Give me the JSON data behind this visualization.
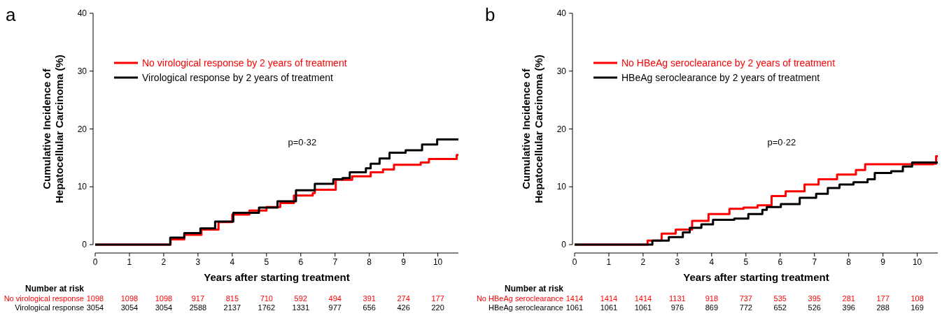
{
  "chart_data": [
    {
      "type": "step",
      "title": "a",
      "xlabel": "Years after starting treatment",
      "ylabel": "Cumulative Incidence of\nHepatocellular Carcinoma (%)",
      "xlim": [
        0,
        10.6
      ],
      "ylim": [
        0,
        40
      ],
      "xticks": [
        0,
        1,
        2,
        3,
        4,
        5,
        6,
        7,
        8,
        9,
        10
      ],
      "yticks": [
        0,
        10,
        20,
        30,
        40
      ],
      "legend": "top left",
      "grid": false,
      "series": [
        {
          "name": "No virological response by 2 years of treatment",
          "color": "#ff0000",
          "x": [
            0,
            2.0,
            2.2,
            2.6,
            3.1,
            3.6,
            4.0,
            4.5,
            5.0,
            5.4,
            5.8,
            6.35,
            6.41,
            7.02,
            7.5,
            8.04,
            8.4,
            8.72,
            9.5,
            9.74,
            10.39,
            10.55,
            10.6
          ],
          "values": [
            0,
            0,
            0.9,
            1.7,
            2.6,
            3.9,
            5.2,
            5.9,
            6.5,
            7.2,
            8.5,
            8.9,
            9.5,
            11.2,
            11.8,
            12.5,
            13.0,
            13.8,
            14.2,
            14.8,
            14.8,
            15.5,
            15.5
          ]
        },
        {
          "name": "Virological response by 2 years of treatment",
          "color": "#000000",
          "x": [
            0,
            1.92,
            2.19,
            2.6,
            3.07,
            3.5,
            4.03,
            4.78,
            5.32,
            5.86,
            6.41,
            6.95,
            7.22,
            7.43,
            7.9,
            8.04,
            8.3,
            8.59,
            9.06,
            9.54,
            9.98,
            10.6
          ],
          "values": [
            0,
            0,
            1.2,
            2.0,
            2.8,
            4.0,
            5.5,
            6.4,
            7.5,
            9.4,
            10.5,
            11.3,
            11.5,
            12.5,
            13.2,
            14.0,
            14.9,
            15.9,
            16.3,
            17.3,
            18.2,
            18.2
          ]
        }
      ],
      "annotations": [
        "p=0·32",
        "Number at risk",
        "No virological response",
        "1098",
        "1098",
        "1098",
        "917",
        "815",
        "710",
        "592",
        "494",
        "391",
        "274",
        "177",
        "Virological response",
        "3054",
        "3054",
        "3054",
        "2588",
        "2137",
        "1762",
        "1331",
        "977",
        "656",
        "426",
        "220"
      ]
    },
    {
      "type": "step",
      "title": "b",
      "xlabel": "Years after starting treatment",
      "ylabel": "Cumulative Incidence of\nHepatocellular Carcinoma (%)",
      "xlim": [
        0,
        10.6
      ],
      "ylim": [
        0,
        40
      ],
      "xticks": [
        0,
        1,
        2,
        3,
        4,
        5,
        6,
        7,
        8,
        9,
        10
      ],
      "yticks": [
        0,
        10,
        20,
        30,
        40
      ],
      "legend": "top left",
      "grid": false,
      "series": [
        {
          "name": "No HBeAg seroclearance by 2 years of treatment",
          "color": "#ff0000",
          "x": [
            0,
            2.0,
            2.13,
            2.54,
            2.95,
            3.43,
            3.91,
            4.52,
            4.93,
            5.34,
            5.75,
            6.16,
            6.71,
            7.12,
            7.66,
            8.21,
            8.48,
            10.47,
            10.55,
            10.6
          ],
          "values": [
            0,
            0,
            0.7,
            1.9,
            2.6,
            4.1,
            5.3,
            6.2,
            6.4,
            6.8,
            8.4,
            9.2,
            10.4,
            11.3,
            12.1,
            12.9,
            13.9,
            14.0,
            15.3,
            15.3
          ]
        },
        {
          "name": "HBeAg seroclearance by 2 years of treatment",
          "color": "#000000",
          "x": [
            0,
            1.9,
            2.27,
            2.75,
            3.16,
            3.36,
            3.7,
            4.04,
            4.66,
            5.07,
            5.48,
            5.61,
            6.02,
            6.57,
            7.05,
            7.39,
            7.73,
            8.14,
            8.55,
            8.76,
            9.24,
            9.58,
            9.85,
            10.6
          ],
          "values": [
            0,
            0,
            0.7,
            1.3,
            2.1,
            2.9,
            3.5,
            4.3,
            4.5,
            5.3,
            6.0,
            6.5,
            7.0,
            8.1,
            8.8,
            9.8,
            10.4,
            10.8,
            11.3,
            12.4,
            12.7,
            13.5,
            14.2,
            14.2
          ]
        }
      ],
      "annotations": [
        "p=0·22",
        "Number at risk",
        "No HBeAg seroclearance",
        "1414",
        "1414",
        "1414",
        "1131",
        "918",
        "737",
        "535",
        "395",
        "281",
        "177",
        "108",
        "HBeAg seroclearance",
        "1061",
        "1061",
        "1061",
        "976",
        "869",
        "772",
        "652",
        "526",
        "396",
        "288",
        "169"
      ]
    }
  ]
}
